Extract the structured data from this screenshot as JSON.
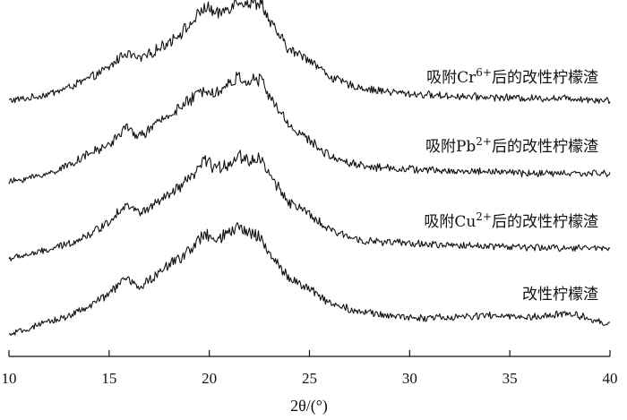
{
  "chart_data": {
    "type": "line",
    "xlabel": "2θ/(°)",
    "xlim": [
      10,
      40
    ],
    "x_ticks": [
      10,
      15,
      20,
      25,
      30,
      35,
      40
    ],
    "y_axis_shown": false,
    "grid": false,
    "series": [
      {
        "name_prefix": "吸附Cr",
        "name_sup": "6+",
        "name_suffix": "后的改性柠檬渣",
        "x": [
          10,
          11,
          12,
          13,
          14,
          15,
          15.8,
          16.5,
          17,
          18,
          19,
          19.8,
          20.4,
          21,
          21.5,
          22,
          22.6,
          23,
          24,
          25,
          26,
          27,
          28,
          30,
          32,
          34,
          36,
          38,
          40
        ],
        "y": [
          0.28,
          0.3,
          0.34,
          0.4,
          0.48,
          0.58,
          0.72,
          0.66,
          0.7,
          0.82,
          0.96,
          1.14,
          1.06,
          1.14,
          1.2,
          1.16,
          1.18,
          1.0,
          0.74,
          0.66,
          0.5,
          0.42,
          0.38,
          0.34,
          0.32,
          0.31,
          0.3,
          0.3,
          0.28
        ]
      },
      {
        "name_prefix": "吸附Pb",
        "name_sup": "2+",
        "name_suffix": "后的改性柠檬渣",
        "x": [
          10,
          11,
          12,
          13,
          14,
          15,
          15.8,
          16.5,
          17,
          18,
          19,
          19.8,
          20.4,
          21,
          21.5,
          22,
          22.6,
          23,
          24,
          25,
          26,
          27,
          28,
          30,
          32,
          34,
          36,
          38,
          40
        ],
        "y": [
          0.22,
          0.26,
          0.3,
          0.38,
          0.48,
          0.56,
          0.72,
          0.64,
          0.7,
          0.84,
          0.96,
          1.08,
          1.04,
          1.12,
          1.18,
          1.14,
          1.16,
          1.0,
          0.74,
          0.6,
          0.46,
          0.4,
          0.36,
          0.34,
          0.32,
          0.32,
          0.3,
          0.3,
          0.3
        ]
      },
      {
        "name_prefix": "吸附Cu",
        "name_sup": "2+",
        "name_suffix": "后的改性柠檬渣",
        "x": [
          10,
          11,
          12,
          13,
          14,
          15,
          15.8,
          16.5,
          17,
          18,
          19,
          19.8,
          20.4,
          21,
          21.5,
          22,
          22.6,
          23,
          24,
          25,
          26,
          27,
          28,
          30,
          32,
          34,
          36,
          38,
          40
        ],
        "y": [
          0.2,
          0.24,
          0.28,
          0.34,
          0.42,
          0.54,
          0.7,
          0.62,
          0.66,
          0.78,
          0.92,
          1.1,
          1.02,
          1.08,
          1.14,
          1.1,
          1.12,
          0.96,
          0.72,
          0.6,
          0.46,
          0.4,
          0.36,
          0.34,
          0.32,
          0.32,
          0.3,
          0.3,
          0.3
        ]
      },
      {
        "name_prefix": "改性柠檬渣",
        "name_sup": "",
        "name_suffix": "",
        "x": [
          10,
          11,
          12,
          13,
          14,
          15,
          15.8,
          16.5,
          17,
          18,
          19,
          19.8,
          20.4,
          21,
          21.5,
          22,
          22.6,
          23,
          24,
          25,
          26,
          27,
          28,
          30,
          32,
          34,
          36,
          38,
          40
        ],
        "y": [
          0.14,
          0.2,
          0.26,
          0.32,
          0.4,
          0.52,
          0.66,
          0.58,
          0.64,
          0.78,
          0.92,
          1.06,
          1.0,
          1.08,
          1.12,
          1.08,
          1.04,
          0.88,
          0.66,
          0.56,
          0.44,
          0.38,
          0.34,
          0.3,
          0.3,
          0.32,
          0.3,
          0.34,
          0.24
        ]
      }
    ]
  }
}
